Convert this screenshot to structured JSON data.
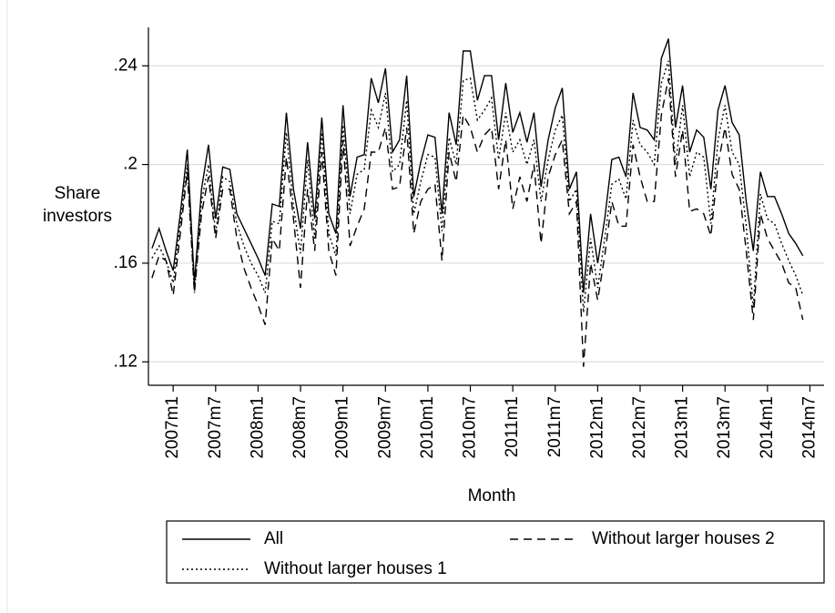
{
  "chart_data": {
    "type": "line",
    "ylabel": [
      "Share",
      "investors"
    ],
    "xlabel": "Month",
    "x": [
      561,
      562,
      563,
      564,
      565,
      566,
      567,
      568,
      569,
      570,
      571,
      572,
      573,
      574,
      575,
      576,
      577,
      578,
      579,
      580,
      581,
      582,
      583,
      584,
      585,
      586,
      587,
      588,
      589,
      590,
      591,
      592,
      593,
      594,
      595,
      596,
      597,
      598,
      599,
      600,
      601,
      602,
      603,
      604,
      605,
      606,
      607,
      608,
      609,
      610,
      611,
      612,
      613,
      614,
      615,
      616,
      617,
      618,
      619,
      620,
      621,
      622,
      623,
      624,
      625,
      626,
      627,
      628,
      629,
      630,
      631,
      632,
      633,
      634,
      635,
      636,
      637,
      638,
      639,
      640,
      641,
      642,
      643,
      644,
      645,
      646,
      647,
      648,
      649,
      650,
      651,
      652,
      653
    ],
    "series": [
      {
        "name": "All",
        "color": "#000000",
        "dash": "solid",
        "values": [
          0.166,
          0.174,
          0.165,
          0.157,
          0.18,
          0.206,
          0.152,
          0.19,
          0.208,
          0.178,
          0.199,
          0.198,
          0.18,
          0.174,
          0.168,
          0.162,
          0.155,
          0.184,
          0.183,
          0.221,
          0.19,
          0.174,
          0.209,
          0.178,
          0.219,
          0.18,
          0.172,
          0.224,
          0.187,
          0.203,
          0.204,
          0.235,
          0.225,
          0.239,
          0.205,
          0.21,
          0.236,
          0.187,
          0.201,
          0.212,
          0.211,
          0.18,
          0.221,
          0.208,
          0.246,
          0.246,
          0.226,
          0.236,
          0.236,
          0.21,
          0.233,
          0.213,
          0.221,
          0.209,
          0.221,
          0.191,
          0.21,
          0.223,
          0.231,
          0.19,
          0.197,
          0.148,
          0.18,
          0.16,
          0.178,
          0.202,
          0.203,
          0.195,
          0.229,
          0.215,
          0.214,
          0.21,
          0.243,
          0.251,
          0.215,
          0.232,
          0.205,
          0.214,
          0.211,
          0.19,
          0.222,
          0.232,
          0.217,
          0.212,
          0.185,
          0.165,
          0.197,
          0.187,
          0.187,
          0.18,
          0.172,
          0.168,
          0.163
        ]
      },
      {
        "name": "Without larger houses 1",
        "color": "#000000",
        "dash": "dot",
        "values": [
          0.162,
          0.167,
          0.161,
          0.152,
          0.176,
          0.2,
          0.148,
          0.185,
          0.2,
          0.172,
          0.195,
          0.193,
          0.176,
          0.167,
          0.16,
          0.155,
          0.148,
          0.177,
          0.176,
          0.213,
          0.183,
          0.164,
          0.202,
          0.17,
          0.213,
          0.172,
          0.163,
          0.216,
          0.18,
          0.196,
          0.198,
          0.222,
          0.215,
          0.229,
          0.197,
          0.2,
          0.226,
          0.18,
          0.193,
          0.204,
          0.203,
          0.173,
          0.211,
          0.2,
          0.234,
          0.235,
          0.218,
          0.222,
          0.227,
          0.202,
          0.221,
          0.205,
          0.21,
          0.2,
          0.21,
          0.185,
          0.202,
          0.214,
          0.22,
          0.185,
          0.19,
          0.14,
          0.17,
          0.15,
          0.17,
          0.192,
          0.194,
          0.186,
          0.218,
          0.208,
          0.205,
          0.2,
          0.233,
          0.242,
          0.2,
          0.224,
          0.195,
          0.205,
          0.203,
          0.176,
          0.21,
          0.224,
          0.205,
          0.2,
          0.175,
          0.142,
          0.188,
          0.178,
          0.176,
          0.168,
          0.161,
          0.155,
          0.147
        ]
      },
      {
        "name": "Without larger houses 2",
        "color": "#000000",
        "dash": "dash",
        "values": [
          0.154,
          0.163,
          0.161,
          0.147,
          0.172,
          0.197,
          0.148,
          0.18,
          0.195,
          0.17,
          0.19,
          0.19,
          0.17,
          0.158,
          0.15,
          0.143,
          0.135,
          0.17,
          0.165,
          0.203,
          0.178,
          0.15,
          0.19,
          0.165,
          0.205,
          0.165,
          0.155,
          0.21,
          0.167,
          0.175,
          0.182,
          0.205,
          0.205,
          0.215,
          0.19,
          0.191,
          0.215,
          0.172,
          0.185,
          0.19,
          0.192,
          0.161,
          0.205,
          0.193,
          0.22,
          0.215,
          0.205,
          0.212,
          0.215,
          0.19,
          0.21,
          0.182,
          0.195,
          0.185,
          0.2,
          0.168,
          0.195,
          0.204,
          0.21,
          0.18,
          0.185,
          0.118,
          0.16,
          0.145,
          0.163,
          0.185,
          0.175,
          0.175,
          0.208,
          0.195,
          0.185,
          0.185,
          0.22,
          0.235,
          0.195,
          0.214,
          0.181,
          0.182,
          0.18,
          0.171,
          0.2,
          0.215,
          0.196,
          0.19,
          0.165,
          0.137,
          0.18,
          0.17,
          0.165,
          0.16,
          0.152,
          0.15,
          0.137
        ]
      }
    ],
    "xlim": [
      560.5,
      656
    ],
    "xticks": [
      {
        "value": 564,
        "label": "2007m1"
      },
      {
        "value": 570,
        "label": "2007m7"
      },
      {
        "value": 576,
        "label": "2008m1"
      },
      {
        "value": 582,
        "label": "2008m7"
      },
      {
        "value": 588,
        "label": "2009m1"
      },
      {
        "value": 594,
        "label": "2009m7"
      },
      {
        "value": 600,
        "label": "2010m1"
      },
      {
        "value": 606,
        "label": "2010m7"
      },
      {
        "value": 612,
        "label": "2011m1"
      },
      {
        "value": 618,
        "label": "2011m7"
      },
      {
        "value": 624,
        "label": "2012m1"
      },
      {
        "value": 630,
        "label": "2012m7"
      },
      {
        "value": 636,
        "label": "2013m1"
      },
      {
        "value": 642,
        "label": "2013m7"
      },
      {
        "value": 648,
        "label": "2014m1"
      },
      {
        "value": 654,
        "label": "2014m7"
      }
    ],
    "ylim": [
      0.1105,
      0.2556
    ],
    "yticks": [
      {
        "value": 0.12,
        "label": ".12"
      },
      {
        "value": 0.16,
        "label": ".16"
      },
      {
        "value": 0.2,
        "label": ".2"
      },
      {
        "value": 0.24,
        "label": ".24"
      }
    ],
    "grid": true,
    "legend": "bottom"
  }
}
